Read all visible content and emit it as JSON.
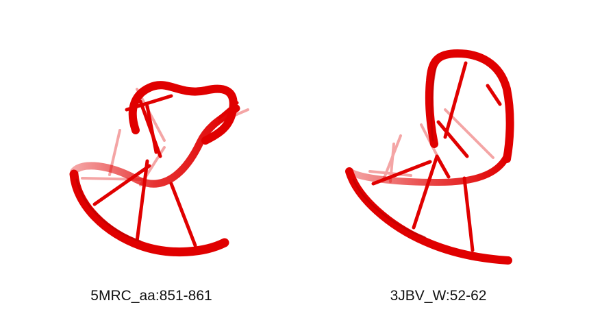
{
  "panels": [
    {
      "id": "5MRC_aa:851-861",
      "label": "5MRC_aa:851-861"
    },
    {
      "id": "3JBV_W:52-62",
      "label": "3JBV_W:52-62"
    }
  ],
  "colors": {
    "background": "#ffffff",
    "backbone": "#e00000",
    "backbone_dark": "#b00000",
    "label": "#111111"
  }
}
